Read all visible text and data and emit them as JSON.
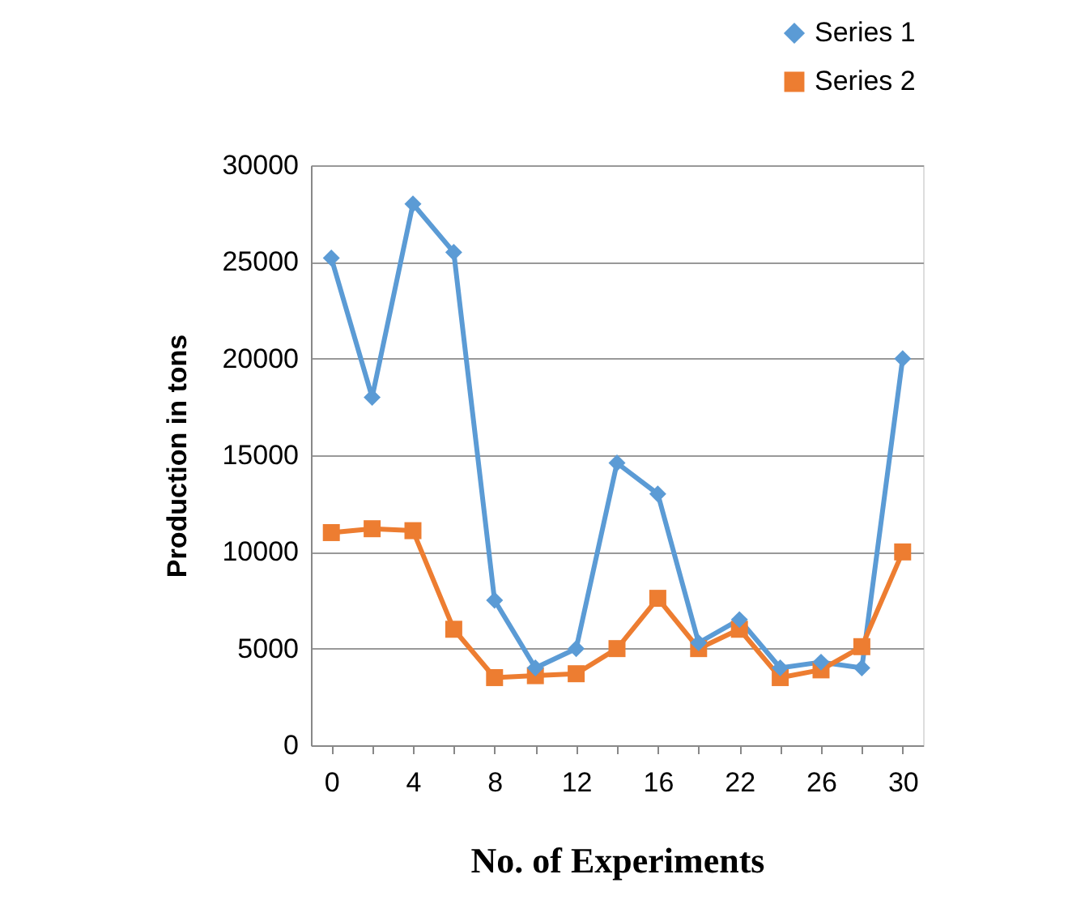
{
  "chart_data": {
    "type": "line",
    "xlabel": "No. of Experiments",
    "ylabel": "Production in tons",
    "categories": [
      "0",
      null,
      "4",
      null,
      "8",
      null,
      "12",
      null,
      "16",
      null,
      "22",
      null,
      "26",
      null,
      "30"
    ],
    "series": [
      {
        "name": "Series 1",
        "color": "#5b9bd5",
        "marker": "diamond",
        "values": [
          25200,
          18000,
          28000,
          25500,
          7500,
          4000,
          5000,
          14600,
          13000,
          5300,
          6500,
          4000,
          4300,
          4000,
          20000
        ]
      },
      {
        "name": "Series 2",
        "color": "#ed7d31",
        "marker": "square",
        "values": [
          11000,
          11200,
          11100,
          6000,
          3500,
          3600,
          3700,
          5000,
          7600,
          5000,
          6000,
          3500,
          3900,
          5100,
          10000
        ]
      }
    ],
    "ylim": [
      0,
      30000
    ],
    "yticks": [
      0,
      5000,
      10000,
      15000,
      20000,
      25000,
      30000
    ],
    "grid": "y",
    "legend": "top right",
    "line_style": "solid"
  }
}
